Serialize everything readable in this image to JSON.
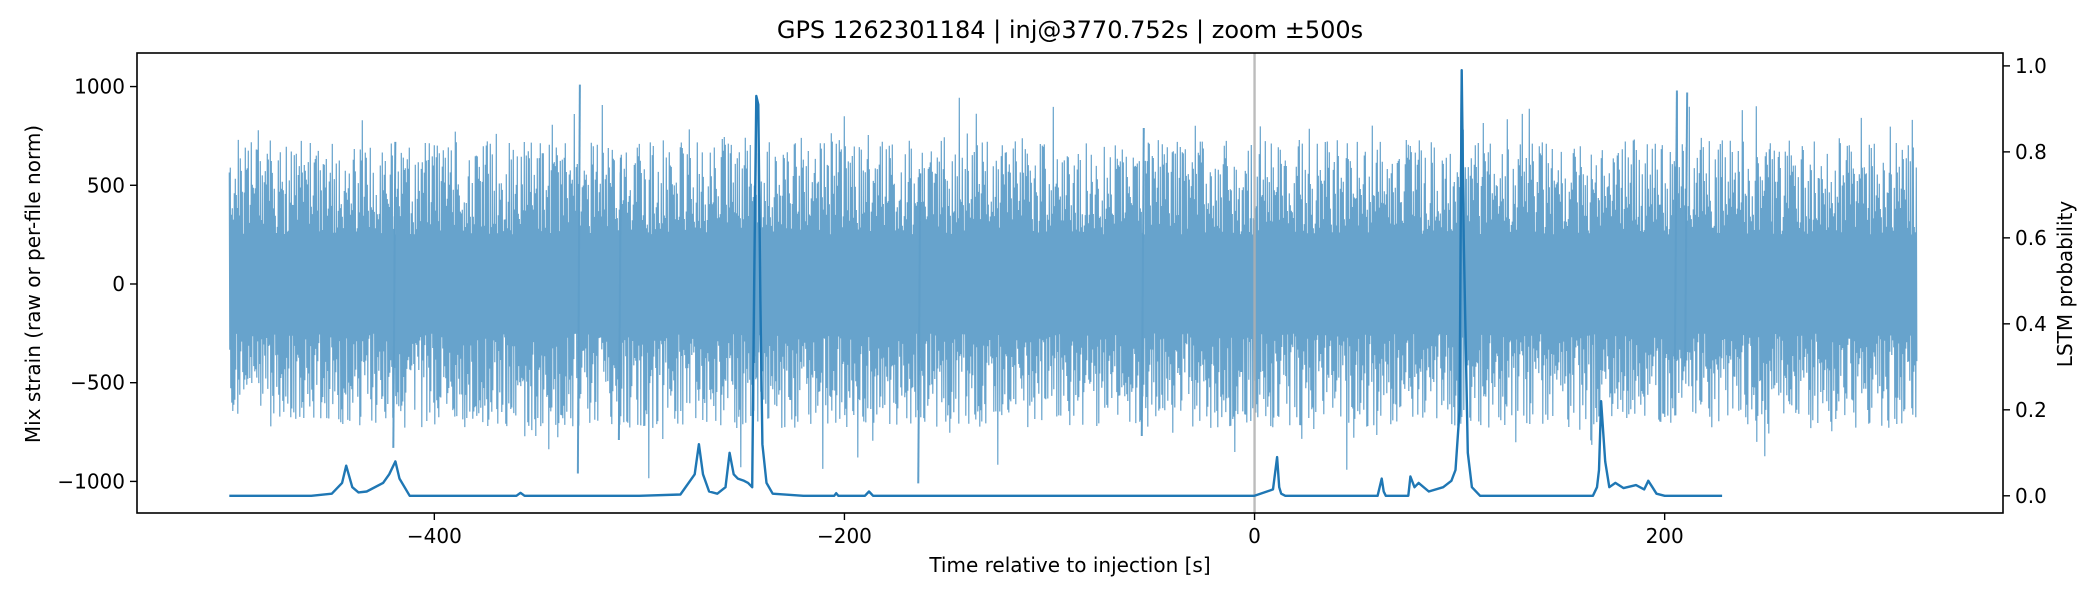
{
  "chart_data": {
    "type": "line",
    "title": "GPS 1262301184 | inj@3770.752s | zoom ±500s",
    "xlabel": "Time relative to injection [s]",
    "ylabel": "Mix strain (raw or per-file norm)",
    "y2label": "LSTM probability",
    "xlim": [
      -545,
      365
    ],
    "ylim": [
      -1160,
      1170
    ],
    "y2lim": [
      -0.04,
      1.03
    ],
    "xticks": [
      -400,
      -200,
      0,
      200
    ],
    "xtick_labels": [
      "−400",
      "−200",
      "0",
      "200"
    ],
    "yticks": [
      1000,
      500,
      0,
      -500,
      -1000
    ],
    "ytick_labels": [
      "1000",
      "500",
      "0",
      "−500",
      "−1000"
    ],
    "y2ticks": [
      1.0,
      0.8,
      0.6,
      0.4,
      0.2,
      0.0
    ],
    "y2tick_labels": [
      "1.0",
      "0.8",
      "0.6",
      "0.4",
      "0.2",
      "0.0"
    ],
    "grid": false,
    "injection_marker_x": 0,
    "series": [
      {
        "axis": "left",
        "color": "#5f9ec9",
        "kind": "noise_envelope",
        "x_range": [
          -500,
          323
        ],
        "typical_amplitude": 420,
        "peaks": [
          {
            "x": -330,
            "low": -960,
            "high": 1010
          },
          {
            "x": -244,
            "low": -400,
            "high": 930
          },
          {
            "x": -164,
            "low": -1010,
            "high": 560
          },
          {
            "x": 100,
            "low": -340,
            "high": 1060
          },
          {
            "x": 205,
            "low": -380,
            "high": 980
          },
          {
            "x": 210,
            "low": -400,
            "high": 970
          },
          {
            "x": -420,
            "low": -830,
            "high": 720
          },
          {
            "x": -310,
            "low": -790,
            "high": 640
          },
          {
            "x": -55,
            "low": -770,
            "high": 790
          }
        ]
      },
      {
        "axis": "right",
        "color": "#1f77b4",
        "x": [
          -500,
          -460,
          -450,
          -445,
          -443,
          -440,
          -437,
          -433,
          -425,
          -422,
          -419,
          -417,
          -412,
          -380,
          -360,
          -358,
          -356,
          -300,
          -280,
          -273,
          -271,
          -269,
          -266,
          -262,
          -258,
          -256,
          -254,
          -252,
          -249,
          -247,
          -245,
          -244,
          -243,
          -242,
          -241,
          -240,
          -238,
          -235,
          -220,
          -205,
          -204,
          -203,
          -190,
          -188,
          -186,
          -160,
          -100,
          -20,
          0,
          9,
          11,
          12,
          13,
          15,
          20,
          60,
          62,
          63,
          64,
          70,
          75,
          76,
          78,
          80,
          85,
          92,
          96,
          98,
          100,
          101,
          102,
          104,
          106,
          110,
          140,
          165,
          167,
          168,
          169,
          171,
          173,
          176,
          180,
          186,
          190,
          192,
          194,
          196,
          200,
          210,
          228
        ],
        "values": [
          0.0,
          0.0,
          0.005,
          0.03,
          0.07,
          0.02,
          0.008,
          0.01,
          0.03,
          0.05,
          0.08,
          0.04,
          0.0,
          0.0,
          0.0,
          0.007,
          0.0,
          0.0,
          0.003,
          0.05,
          0.12,
          0.05,
          0.01,
          0.005,
          0.02,
          0.1,
          0.05,
          0.04,
          0.035,
          0.03,
          0.02,
          0.5,
          0.93,
          0.91,
          0.45,
          0.12,
          0.03,
          0.005,
          0.0,
          0.0,
          0.006,
          0.0,
          0.0,
          0.01,
          0.0,
          0.0,
          0.0,
          0.0,
          0.0,
          0.015,
          0.09,
          0.02,
          0.005,
          0.0,
          0.0,
          0.0,
          0.04,
          0.01,
          0.0,
          0.0,
          0.0,
          0.045,
          0.02,
          0.03,
          0.01,
          0.02,
          0.035,
          0.06,
          0.2,
          0.99,
          0.6,
          0.1,
          0.02,
          0.0,
          0.0,
          0.0,
          0.02,
          0.06,
          0.22,
          0.08,
          0.02,
          0.03,
          0.018,
          0.025,
          0.015,
          0.035,
          0.02,
          0.005,
          0.0,
          0.0,
          0.0
        ]
      }
    ]
  },
  "colors": {
    "strain": "#5f9ec9",
    "probability": "#1f77b4",
    "marker": "#b0b0b0",
    "axes": "#000000"
  }
}
